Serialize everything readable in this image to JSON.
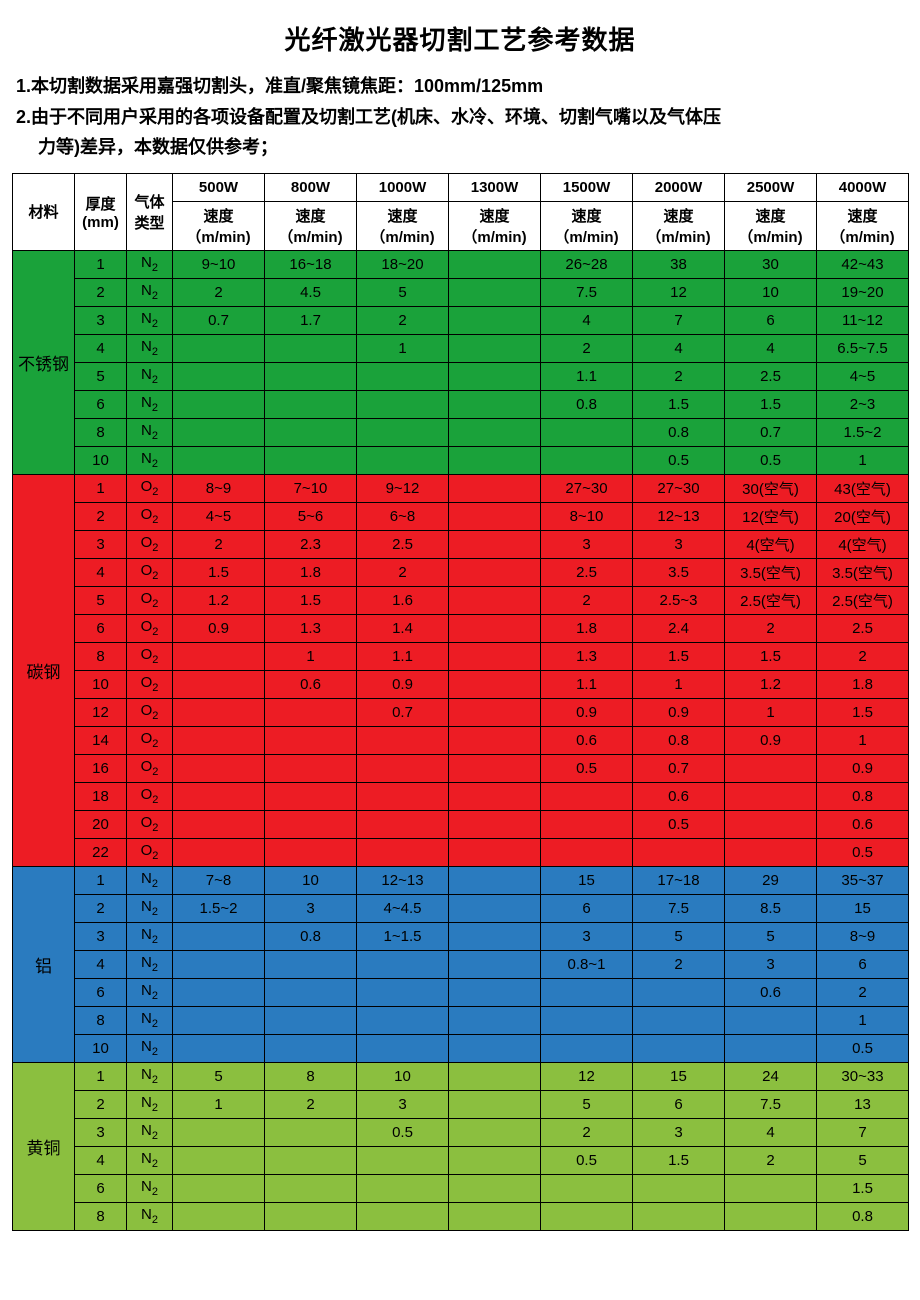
{
  "title": "光纤激光器切割工艺参考数据",
  "note1": "1.本切割数据采用嘉强切割头，准直/聚焦镜焦距：100mm/125mm",
  "note2a": "2.由于不同用户采用的各项设备配置及切割工艺(机床、水冷、环境、切割气嘴以及气体压",
  "note2b": "力等)差异，本数据仅供参考；",
  "headers": {
    "material": "材料",
    "thickness": "厚度 (mm)",
    "gas": "气体类型",
    "speed": "速度（m/min)",
    "powers": [
      "500W",
      "800W",
      "1000W",
      "1300W",
      "1500W",
      "2000W",
      "2500W",
      "4000W"
    ]
  },
  "colors": {
    "stainless": "#1aa23a",
    "carbon": "#ed1c24",
    "aluminum": "#2a7bbf",
    "brass": "#8bbf3f",
    "border": "#000000",
    "text": "#000000"
  },
  "materials": [
    {
      "name": "不锈钢",
      "color": "#1aa23a",
      "gas": "N₂",
      "rows": [
        {
          "t": "1",
          "v": [
            "9~10",
            "16~18",
            "18~20",
            "",
            "26~28",
            "38",
            "30",
            "42~43"
          ]
        },
        {
          "t": "2",
          "v": [
            "2",
            "4.5",
            "5",
            "",
            "7.5",
            "12",
            "10",
            "19~20"
          ]
        },
        {
          "t": "3",
          "v": [
            "0.7",
            "1.7",
            "2",
            "",
            "4",
            "7",
            "6",
            "11~12"
          ]
        },
        {
          "t": "4",
          "v": [
            "",
            "",
            "1",
            "",
            "2",
            "4",
            "4",
            "6.5~7.5"
          ]
        },
        {
          "t": "5",
          "v": [
            "",
            "",
            "",
            "",
            "1.1",
            "2",
            "2.5",
            "4~5"
          ]
        },
        {
          "t": "6",
          "v": [
            "",
            "",
            "",
            "",
            "0.8",
            "1.5",
            "1.5",
            "2~3"
          ]
        },
        {
          "t": "8",
          "v": [
            "",
            "",
            "",
            "",
            "",
            "0.8",
            "0.7",
            "1.5~2"
          ]
        },
        {
          "t": "10",
          "v": [
            "",
            "",
            "",
            "",
            "",
            "0.5",
            "0.5",
            "1"
          ]
        }
      ]
    },
    {
      "name": "碳钢",
      "color": "#ed1c24",
      "gas": "O₂",
      "rows": [
        {
          "t": "1",
          "v": [
            "8~9",
            "7~10",
            "9~12",
            "",
            "27~30",
            "27~30",
            "30(空气)",
            "43(空气)"
          ]
        },
        {
          "t": "2",
          "v": [
            "4~5",
            "5~6",
            "6~8",
            "",
            "8~10",
            "12~13",
            "12(空气)",
            "20(空气)"
          ]
        },
        {
          "t": "3",
          "v": [
            "2",
            "2.3",
            "2.5",
            "",
            "3",
            "3",
            "4(空气)",
            "4(空气)"
          ]
        },
        {
          "t": "4",
          "v": [
            "1.5",
            "1.8",
            "2",
            "",
            "2.5",
            "3.5",
            "3.5(空气)",
            "3.5(空气)"
          ]
        },
        {
          "t": "5",
          "v": [
            "1.2",
            "1.5",
            "1.6",
            "",
            "2",
            "2.5~3",
            "2.5(空气)",
            "2.5(空气)"
          ]
        },
        {
          "t": "6",
          "v": [
            "0.9",
            "1.3",
            "1.4",
            "",
            "1.8",
            "2.4",
            "2",
            "2.5"
          ]
        },
        {
          "t": "8",
          "v": [
            "",
            "1",
            "1.1",
            "",
            "1.3",
            "1.5",
            "1.5",
            "2"
          ]
        },
        {
          "t": "10",
          "v": [
            "",
            "0.6",
            "0.9",
            "",
            "1.1",
            "1",
            "1.2",
            "1.8"
          ]
        },
        {
          "t": "12",
          "v": [
            "",
            "",
            "0.7",
            "",
            "0.9",
            "0.9",
            "1",
            "1.5"
          ]
        },
        {
          "t": "14",
          "v": [
            "",
            "",
            "",
            "",
            "0.6",
            "0.8",
            "0.9",
            "1"
          ]
        },
        {
          "t": "16",
          "v": [
            "",
            "",
            "",
            "",
            "0.5",
            "0.7",
            "",
            "0.9"
          ]
        },
        {
          "t": "18",
          "v": [
            "",
            "",
            "",
            "",
            "",
            "0.6",
            "",
            "0.8"
          ]
        },
        {
          "t": "20",
          "v": [
            "",
            "",
            "",
            "",
            "",
            "0.5",
            "",
            "0.6"
          ]
        },
        {
          "t": "22",
          "v": [
            "",
            "",
            "",
            "",
            "",
            "",
            "",
            "0.5"
          ]
        }
      ]
    },
    {
      "name": "铝",
      "color": "#2a7bbf",
      "gas": "N₂",
      "rows": [
        {
          "t": "1",
          "v": [
            "7~8",
            "10",
            "12~13",
            "",
            "15",
            "17~18",
            "29",
            "35~37"
          ]
        },
        {
          "t": "2",
          "v": [
            "1.5~2",
            "3",
            "4~4.5",
            "",
            "6",
            "7.5",
            "8.5",
            "15"
          ]
        },
        {
          "t": "3",
          "v": [
            "",
            "0.8",
            "1~1.5",
            "",
            "3",
            "5",
            "5",
            "8~9"
          ]
        },
        {
          "t": "4",
          "v": [
            "",
            "",
            "",
            "",
            "0.8~1",
            "2",
            "3",
            "6"
          ]
        },
        {
          "t": "6",
          "v": [
            "",
            "",
            "",
            "",
            "",
            "",
            "0.6",
            "2"
          ]
        },
        {
          "t": "8",
          "v": [
            "",
            "",
            "",
            "",
            "",
            "",
            "",
            "1"
          ]
        },
        {
          "t": "10",
          "v": [
            "",
            "",
            "",
            "",
            "",
            "",
            "",
            "0.5"
          ]
        }
      ]
    },
    {
      "name": "黄铜",
      "color": "#8bbf3f",
      "gas": "N₂",
      "rows": [
        {
          "t": "1",
          "v": [
            "5",
            "8",
            "10",
            "",
            "12",
            "15",
            "24",
            "30~33"
          ]
        },
        {
          "t": "2",
          "v": [
            "1",
            "2",
            "3",
            "",
            "5",
            "6",
            "7.5",
            "13"
          ]
        },
        {
          "t": "3",
          "v": [
            "",
            "",
            "0.5",
            "",
            "2",
            "3",
            "4",
            "7"
          ]
        },
        {
          "t": "4",
          "v": [
            "",
            "",
            "",
            "",
            "0.5",
            "1.5",
            "2",
            "5"
          ]
        },
        {
          "t": "6",
          "v": [
            "",
            "",
            "",
            "",
            "",
            "",
            "",
            "1.5"
          ]
        },
        {
          "t": "8",
          "v": [
            "",
            "",
            "",
            "",
            "",
            "",
            "",
            "0.8"
          ]
        }
      ]
    }
  ]
}
